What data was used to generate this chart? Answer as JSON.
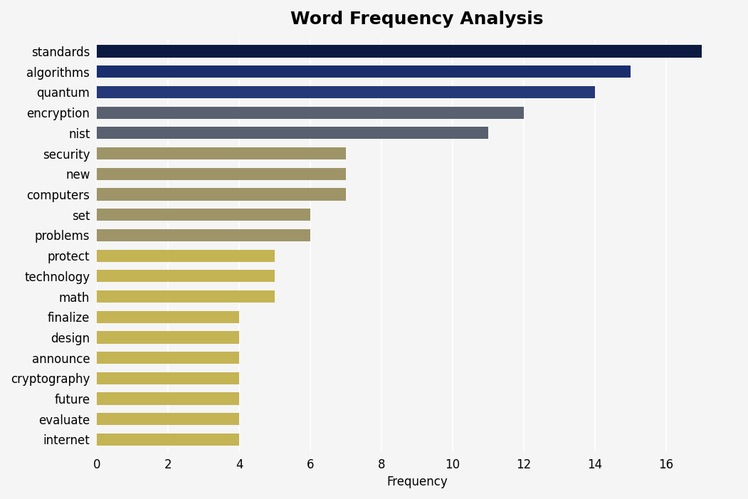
{
  "title": "Word Frequency Analysis",
  "xlabel": "Frequency",
  "categories": [
    "internet",
    "evaluate",
    "future",
    "cryptography",
    "announce",
    "design",
    "finalize",
    "math",
    "technology",
    "protect",
    "problems",
    "set",
    "computers",
    "new",
    "security",
    "nist",
    "encryption",
    "quantum",
    "algorithms",
    "standards"
  ],
  "values": [
    4,
    4,
    4,
    4,
    4,
    4,
    4,
    5,
    5,
    5,
    6,
    6,
    7,
    7,
    7,
    11,
    12,
    14,
    15,
    17
  ],
  "bar_colors": [
    "#c4b454",
    "#c4b454",
    "#c4b454",
    "#c4b454",
    "#c4b454",
    "#c4b454",
    "#c4b454",
    "#c4b454",
    "#c4b454",
    "#c4b454",
    "#9e9468",
    "#9e9468",
    "#9e9468",
    "#9e9468",
    "#9e9468",
    "#596070",
    "#596070",
    "#253878",
    "#1a2e6e",
    "#0c1a42"
  ],
  "xlim": [
    0,
    18
  ],
  "xticks": [
    0,
    2,
    4,
    6,
    8,
    10,
    12,
    14,
    16
  ],
  "background_color": "#f5f5f5",
  "plot_background": "#f5f5f5",
  "title_fontsize": 18,
  "label_fontsize": 12,
  "tick_fontsize": 12,
  "bar_height": 0.6,
  "figsize": [
    10.51,
    7.01
  ],
  "dpi": 100
}
